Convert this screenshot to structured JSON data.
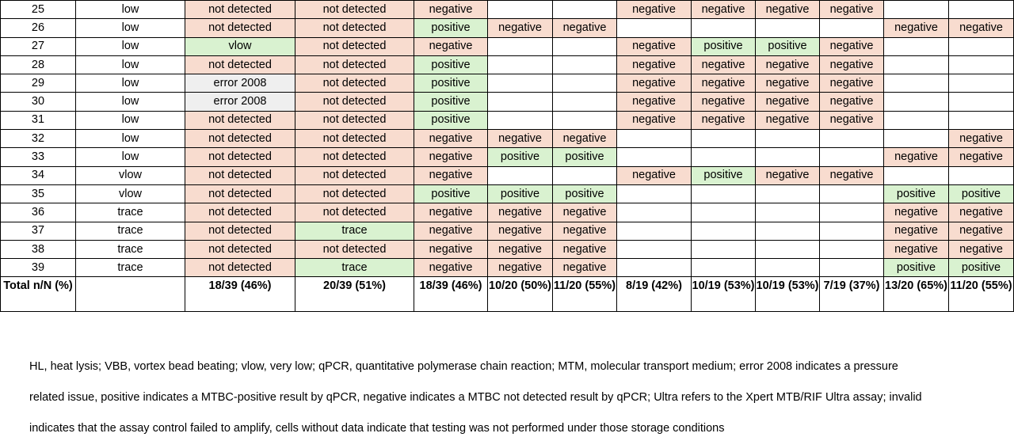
{
  "rows": [
    [
      "25",
      "low",
      "not detected",
      "not detected",
      "negative",
      "",
      "",
      "negative",
      "negative",
      "negative",
      "negative",
      "",
      ""
    ],
    [
      "26",
      "low",
      "not detected",
      "not detected",
      "positive",
      "negative",
      "negative",
      "",
      "",
      "",
      "",
      "negative",
      "negative"
    ],
    [
      "27",
      "low",
      "vlow",
      "not detected",
      "negative",
      "",
      "",
      "negative",
      "positive",
      "positive",
      "negative",
      "",
      ""
    ],
    [
      "28",
      "low",
      "not detected",
      "not detected",
      "positive",
      "",
      "",
      "negative",
      "negative",
      "negative",
      "negative",
      "",
      ""
    ],
    [
      "29",
      "low",
      "error 2008",
      "not detected",
      "positive",
      "",
      "",
      "negative",
      "negative",
      "negative",
      "negative",
      "",
      ""
    ],
    [
      "30",
      "low",
      "error 2008",
      "not detected",
      "positive",
      "",
      "",
      "negative",
      "negative",
      "negative",
      "negative",
      "",
      ""
    ],
    [
      "31",
      "low",
      "not detected",
      "not detected",
      "positive",
      "",
      "",
      "negative",
      "negative",
      "negative",
      "negative",
      "",
      ""
    ],
    [
      "32",
      "low",
      "not detected",
      "not detected",
      "negative",
      "negative",
      "negative",
      "",
      "",
      "",
      "",
      "",
      "negative"
    ],
    [
      "33",
      "low",
      "not detected",
      "not detected",
      "negative",
      "positive",
      "positive",
      "",
      "",
      "",
      "",
      "negative",
      "negative"
    ],
    [
      "34",
      "vlow",
      "not detected",
      "not detected",
      "negative",
      "",
      "",
      "negative",
      "positive",
      "negative",
      "negative",
      "",
      ""
    ],
    [
      "35",
      "vlow",
      "not detected",
      "not detected",
      "positive",
      "positive",
      "positive",
      "",
      "",
      "",
      "",
      "positive",
      "positive"
    ],
    [
      "36",
      "trace",
      "not detected",
      "not detected",
      "negative",
      "negative",
      "negative",
      "",
      "",
      "",
      "",
      "negative",
      "negative"
    ],
    [
      "37",
      "trace",
      "not detected",
      "trace",
      "negative",
      "negative",
      "negative",
      "",
      "",
      "",
      "",
      "negative",
      "negative"
    ],
    [
      "38",
      "trace",
      "not detected",
      "not detected",
      "negative",
      "negative",
      "negative",
      "",
      "",
      "",
      "",
      "negative",
      "negative"
    ],
    [
      "39",
      "trace",
      "not detected",
      "trace",
      "negative",
      "negative",
      "negative",
      "",
      "",
      "",
      "",
      "positive",
      "positive"
    ]
  ],
  "total": [
    "Total n/N (%)",
    "",
    "18/39 (46%)",
    "20/39 (51%)",
    "18/39 (46%)",
    "10/20 (50%)",
    "11/20 (55%)",
    "8/19 (42%)",
    "10/19 (53%)",
    "10/19 (53%)",
    "7/19 (37%)",
    "13/20 (65%)",
    "11/20 (55%)"
  ],
  "footer": {
    "line1": "HL, heat lysis; VBB, vortex bead beating; vlow, very low; qPCR, quantitative polymerase chain reaction; MTM, molecular transport medium; error 2008 indicates a pressure",
    "line2": "related issue, positive indicates a MTBC-positive result by qPCR, negative indicates a MTBC not detected result by qPCR; Ultra refers to the Xpert MTB/RIF Ultra assay; invalid",
    "line3": "indicates that the assay control failed to amplify, cells without data indicate that testing was not performed under those storage conditions"
  },
  "colors": {
    "not_detected_bg": "#f8dccf",
    "positive_bg": "#d9f2d0",
    "error_bg": "#efefef"
  }
}
